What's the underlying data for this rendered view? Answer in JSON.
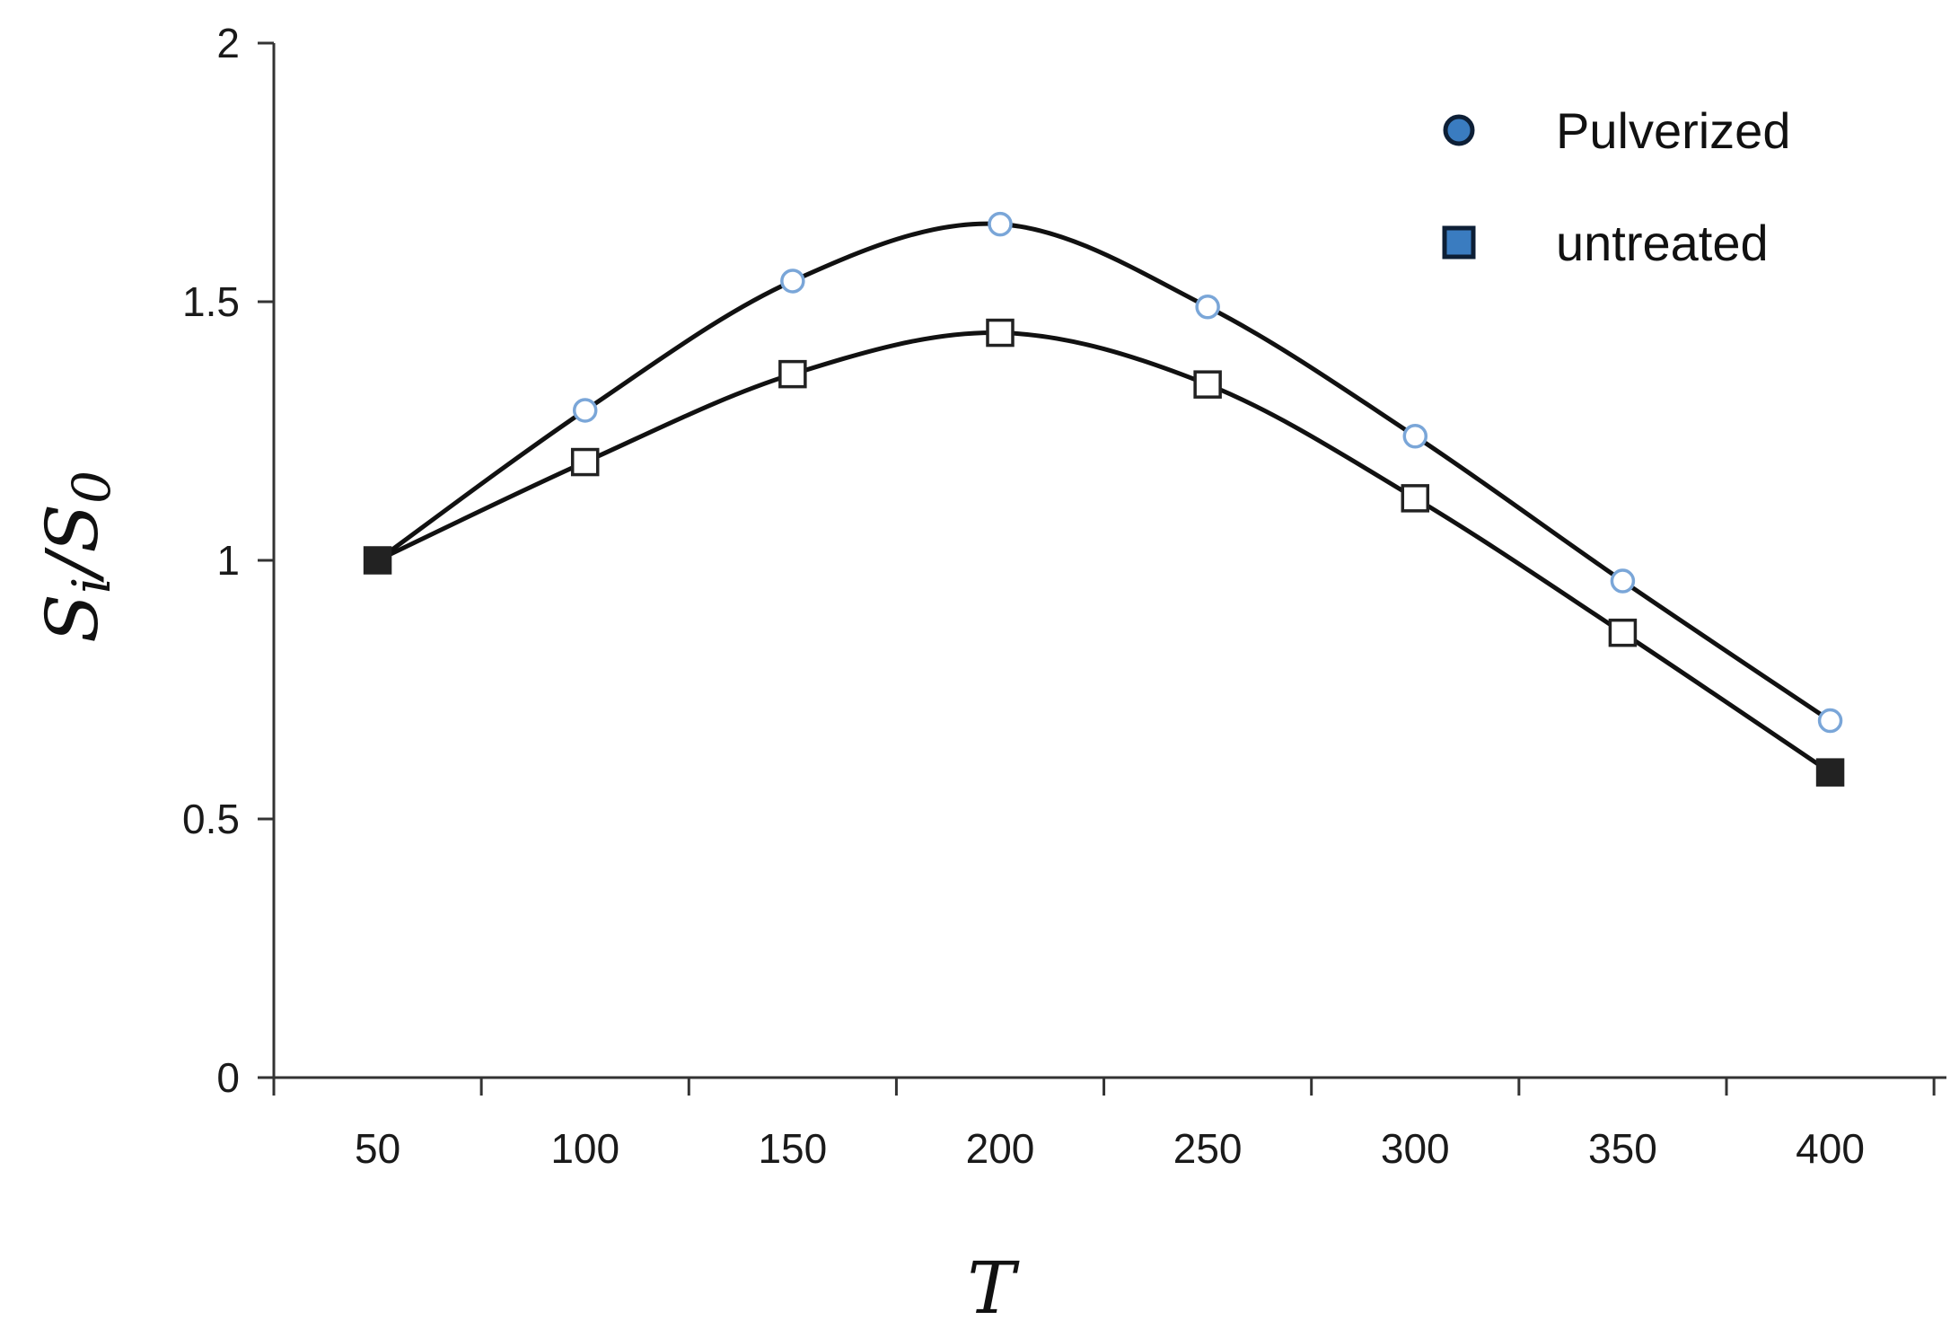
{
  "chart_data": {
    "type": "line",
    "title": "",
    "xlabel": "T",
    "ylabel": "Si/S0",
    "categories": [
      "50",
      "100",
      "150",
      "200",
      "250",
      "300",
      "350",
      "400"
    ],
    "x": [
      50,
      100,
      150,
      200,
      250,
      300,
      350,
      400
    ],
    "ylim": [
      0,
      2
    ],
    "yticks": [
      "0",
      "0.5",
      "1",
      "1.5",
      "2"
    ],
    "grid": false,
    "legend": "top-right",
    "series": [
      {
        "name": "Pulverized",
        "marker": "circle",
        "values": [
          1.0,
          1.29,
          1.54,
          1.65,
          1.49,
          1.24,
          0.96,
          0.69
        ]
      },
      {
        "name": "untreated",
        "marker": "square",
        "values": [
          1.0,
          1.19,
          1.36,
          1.44,
          1.34,
          1.12,
          0.86,
          0.59
        ]
      }
    ],
    "colors": {
      "curve": "#111111",
      "circle_marker": "#7aa6d8",
      "square_marker": "#222222",
      "legend_fill": "#3a7cc0"
    }
  }
}
